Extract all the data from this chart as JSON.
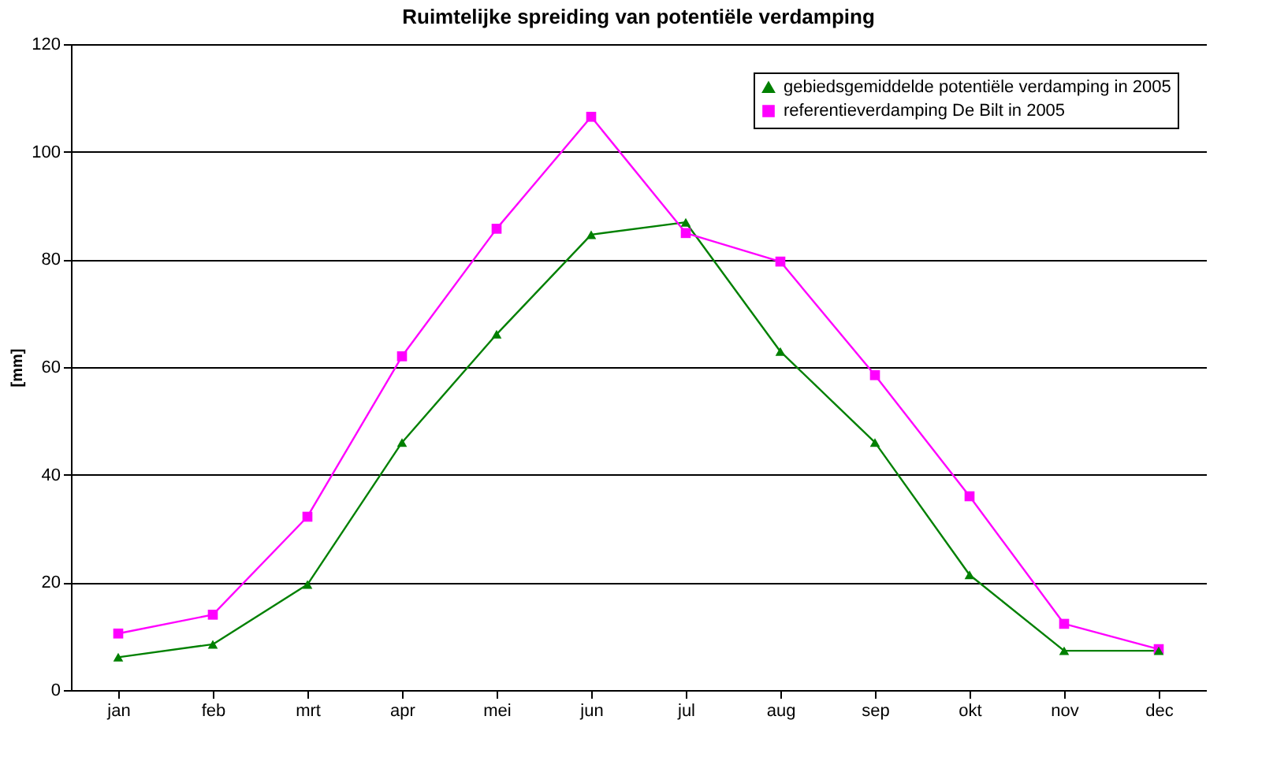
{
  "chart_data": {
    "type": "line",
    "title": "Ruimtelijke spreiding van potentiële verdamping",
    "ylabel": "[mm]",
    "categories": [
      "jan",
      "feb",
      "mrt",
      "apr",
      "mei",
      "jun",
      "jul",
      "aug",
      "sep",
      "okt",
      "nov",
      "dec"
    ],
    "series": [
      {
        "name": "gebiedsgemiddelde potentiële verdamping in 2005",
        "color": "#008000",
        "marker": "triangle",
        "values": [
          6.1,
          8.5,
          19.6,
          46,
          66.1,
          84.6,
          86.9,
          62.9,
          46,
          21.4,
          7.3,
          7.3
        ]
      },
      {
        "name": "referentieverdamping De Bilt in 2005",
        "color": "#ff00ff",
        "marker": "square",
        "values": [
          10.5,
          14,
          32.2,
          62,
          85.7,
          106.5,
          84.9,
          79.6,
          58.5,
          36,
          12.3,
          7.6
        ]
      }
    ],
    "ylim": [
      0,
      120
    ],
    "yticks": [
      0,
      20,
      40,
      60,
      80,
      100,
      120
    ],
    "grid": "y",
    "legend": "top right"
  }
}
